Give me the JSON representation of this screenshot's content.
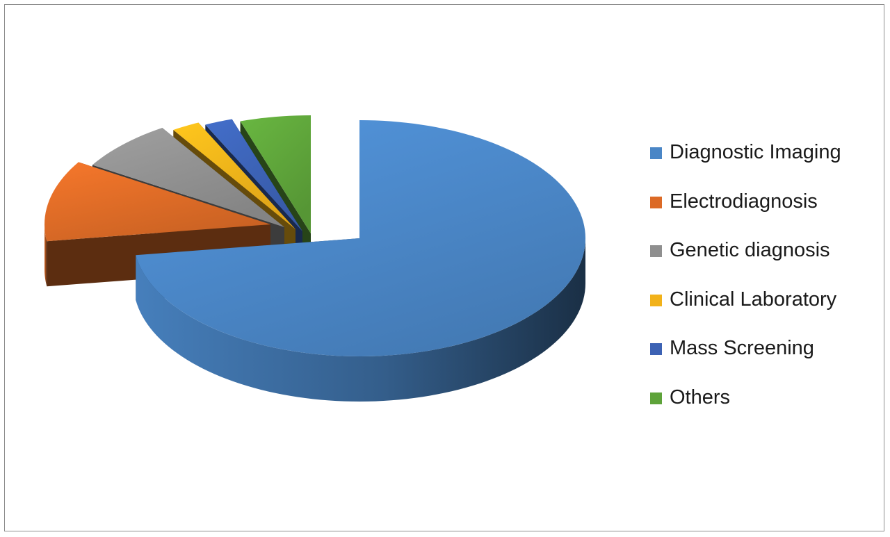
{
  "chart_data": {
    "type": "pie",
    "style": "3d-exploded",
    "categories": [
      "Diagnostic Imaging",
      "Electrodiagnosis",
      "Genetic diagnosis",
      "Clinical Laboratory",
      "Mass Screening",
      "Others"
    ],
    "values": [
      72,
      11,
      7,
      2,
      2,
      5
    ],
    "colors": [
      "#4a86c6",
      "#dc6a26",
      "#8f8f8f",
      "#f2b21a",
      "#3c62b4",
      "#5ea33a"
    ],
    "legend": {
      "placement": "right",
      "entries": [
        "Diagnostic Imaging",
        "Electrodiagnosis",
        "Genetic diagnosis",
        "Clinical Laboratory",
        "Mass Screening",
        "Others"
      ]
    },
    "title": ""
  }
}
